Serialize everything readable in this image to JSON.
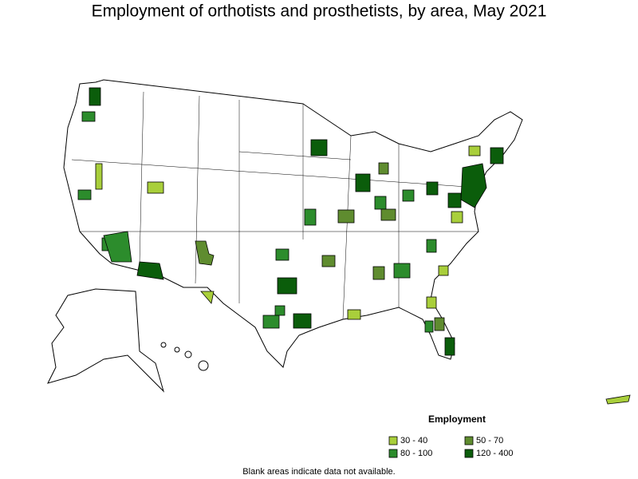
{
  "title": "Employment of orthotists and prosthetists, by area, May 2021",
  "legend": {
    "title": "Employment",
    "items": [
      {
        "label": "30 - 40",
        "color": "#a9cf3b"
      },
      {
        "label": "50 - 70",
        "color": "#5f8c2f"
      },
      {
        "label": "80 - 100",
        "color": "#2c8c2c"
      },
      {
        "label": "120 - 400",
        "color": "#0b5d0b"
      }
    ]
  },
  "note": "Blank areas indicate data not available."
}
